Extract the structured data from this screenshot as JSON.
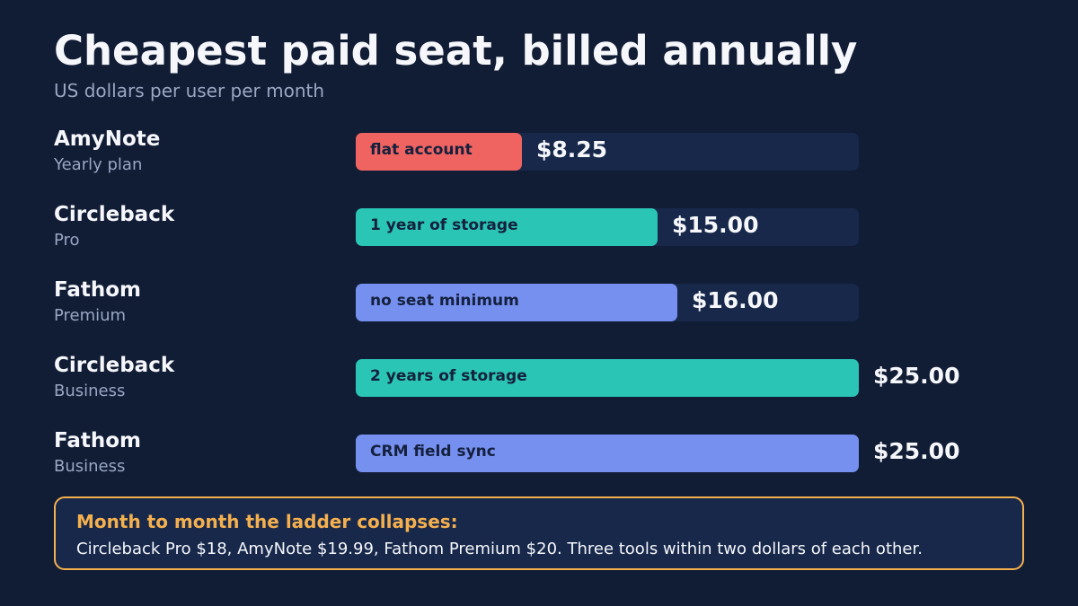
{
  "title": "Cheapest paid seat, billed annually",
  "subtitle": "US dollars per user per month",
  "colors": {
    "background": "#111c35",
    "track": "#17284b",
    "AmyNote": "#ef6461",
    "Circleback": "#2ac5b5",
    "Fathom": "#7690f0",
    "callout_border": "#f5b04e"
  },
  "chart_data": {
    "type": "bar",
    "orientation": "horizontal",
    "title": "Cheapest paid seat, billed annually",
    "subtitle": "US dollars per user per month",
    "xlim": [
      0,
      25
    ],
    "categories": [
      "AmyNote",
      "Circleback",
      "Fathom",
      "Circleback",
      "Fathom"
    ],
    "plans": [
      "Yearly plan",
      "Pro",
      "Premium",
      "Business",
      "Business"
    ],
    "notes": [
      "flat account",
      "1 year of storage",
      "no seat minimum",
      "2 years of storage",
      "CRM field sync"
    ],
    "values": [
      8.25,
      15.0,
      16.0,
      25.0,
      25.0
    ],
    "value_labels": [
      "$8.25",
      "$15.00",
      "$16.00",
      "$25.00",
      "$25.00"
    ]
  },
  "callout": {
    "heading": "Month to month the ladder collapses:",
    "body": "Circleback Pro $18, AmyNote $19.99, Fathom Premium $20. Three tools within two dollars of each other."
  }
}
